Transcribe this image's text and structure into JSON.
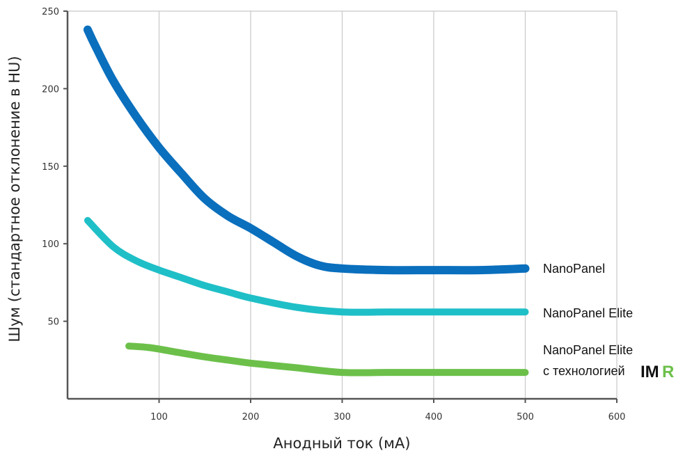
{
  "chart_data": {
    "type": "line",
    "xlabel": "Анодный ток (мА)",
    "ylabel": "Шум (стандартное отклонение в HU)",
    "xlim": [
      0,
      600
    ],
    "ylim": [
      0,
      250
    ],
    "x_ticks": [
      100,
      200,
      300,
      400,
      500,
      600
    ],
    "y_ticks": [
      50,
      100,
      150,
      200,
      250
    ],
    "grid": "vertical",
    "legend": "direct labels at right end of lines",
    "series": [
      {
        "name": "NanoPanel",
        "color": "#0a6fbd",
        "points": [
          [
            22,
            238
          ],
          [
            30,
            228
          ],
          [
            50,
            205
          ],
          [
            75,
            182
          ],
          [
            100,
            162
          ],
          [
            125,
            145
          ],
          [
            150,
            129
          ],
          [
            175,
            118
          ],
          [
            200,
            110
          ],
          [
            225,
            101
          ],
          [
            250,
            92
          ],
          [
            275,
            86
          ],
          [
            300,
            84
          ],
          [
            350,
            83
          ],
          [
            400,
            83
          ],
          [
            450,
            83
          ],
          [
            500,
            84
          ]
        ]
      },
      {
        "name": "NanoPanel Elite",
        "color": "#1fbfc7",
        "points": [
          [
            22,
            115
          ],
          [
            50,
            98
          ],
          [
            75,
            89
          ],
          [
            100,
            83
          ],
          [
            125,
            78
          ],
          [
            150,
            73
          ],
          [
            175,
            69
          ],
          [
            200,
            65
          ],
          [
            250,
            59
          ],
          [
            300,
            56
          ],
          [
            350,
            56
          ],
          [
            400,
            56
          ],
          [
            450,
            56
          ],
          [
            500,
            56
          ]
        ]
      },
      {
        "name": "NanoPanel Elite с технологией IMR",
        "color": "#6cc04a",
        "points": [
          [
            67,
            34
          ],
          [
            90,
            33
          ],
          [
            120,
            30
          ],
          [
            150,
            27
          ],
          [
            175,
            25
          ],
          [
            200,
            23
          ],
          [
            250,
            20
          ],
          [
            300,
            17
          ],
          [
            350,
            17
          ],
          [
            400,
            17
          ],
          [
            450,
            17
          ],
          [
            500,
            17
          ]
        ]
      }
    ],
    "labels": {
      "line1": "NanoPanel",
      "line2": "NanoPanel Elite",
      "line3a": "NanoPanel Elite",
      "line3b": "с технологией",
      "logo_im": "IM",
      "logo_r": "R"
    },
    "colors": {
      "grid": "#c8c8c8",
      "axis": "#555555",
      "logo_im": "#111111",
      "logo_r": "#6cc04a"
    }
  }
}
